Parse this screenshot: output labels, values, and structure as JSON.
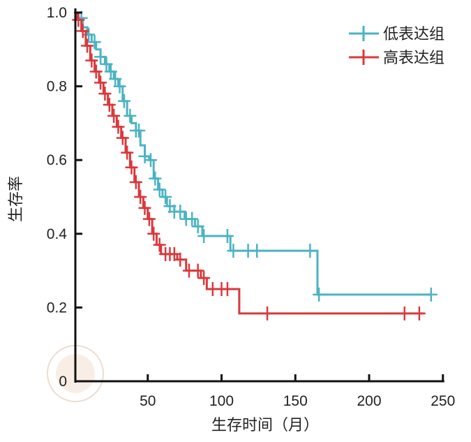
{
  "chart_data": {
    "type": "line",
    "subtype": "kaplan-meier",
    "title": "",
    "xlabel": "生存时间（月）",
    "ylabel": "生存率",
    "xlim": [
      0,
      250
    ],
    "ylim": [
      0,
      1.0
    ],
    "xticks": [
      50,
      100,
      150,
      200,
      250
    ],
    "yticks": [
      0,
      0.2,
      0.4,
      0.6,
      0.8,
      1.0
    ],
    "ytick_labels": [
      "0",
      "0.2",
      "0.4",
      "0.6",
      "0.8",
      "1.0"
    ],
    "xtick_labels": [
      "50",
      "100",
      "150",
      "200",
      "250"
    ],
    "grid": false,
    "legend_position": "top-right",
    "series": [
      {
        "name": "低表达组",
        "color": "#4bb3c3",
        "steps": [
          [
            0,
            1
          ],
          [
            3,
            0.985
          ],
          [
            6,
            0.96
          ],
          [
            9,
            0.94
          ],
          [
            12,
            0.92
          ],
          [
            15,
            0.9
          ],
          [
            18,
            0.88
          ],
          [
            21,
            0.86
          ],
          [
            24,
            0.84
          ],
          [
            27,
            0.82
          ],
          [
            30,
            0.8
          ],
          [
            33,
            0.76
          ],
          [
            36,
            0.72
          ],
          [
            39,
            0.7
          ],
          [
            42,
            0.68
          ],
          [
            45,
            0.64
          ],
          [
            48,
            0.61
          ],
          [
            51,
            0.6
          ],
          [
            54,
            0.55
          ],
          [
            57,
            0.52
          ],
          [
            60,
            0.5
          ],
          [
            63,
            0.475
          ],
          [
            68,
            0.46
          ],
          [
            75,
            0.44
          ],
          [
            82,
            0.42
          ],
          [
            87,
            0.394
          ],
          [
            106,
            0.354
          ],
          [
            165,
            0.235
          ]
        ],
        "end": 242,
        "censored": [
          5,
          10,
          14,
          18,
          22,
          25,
          28,
          31,
          34,
          38,
          42,
          44,
          48,
          52,
          55,
          58,
          62,
          65,
          68,
          72,
          76,
          80,
          84,
          88,
          104,
          108,
          118,
          124,
          160,
          166,
          242
        ]
      },
      {
        "name": "高表达组",
        "color": "#d9393c",
        "steps": [
          [
            0,
            1
          ],
          [
            2,
            0.98
          ],
          [
            5,
            0.95
          ],
          [
            8,
            0.91
          ],
          [
            11,
            0.87
          ],
          [
            14,
            0.84
          ],
          [
            17,
            0.81
          ],
          [
            20,
            0.78
          ],
          [
            23,
            0.75
          ],
          [
            26,
            0.72
          ],
          [
            29,
            0.69
          ],
          [
            32,
            0.66
          ],
          [
            35,
            0.62
          ],
          [
            38,
            0.58
          ],
          [
            41,
            0.54
          ],
          [
            44,
            0.5
          ],
          [
            47,
            0.47
          ],
          [
            50,
            0.44
          ],
          [
            53,
            0.4
          ],
          [
            56,
            0.37
          ],
          [
            59,
            0.345
          ],
          [
            70,
            0.33
          ],
          [
            76,
            0.3
          ],
          [
            86,
            0.28
          ],
          [
            90,
            0.25
          ],
          [
            112,
            0.184
          ]
        ],
        "end": 237,
        "censored": [
          3,
          6,
          9,
          12,
          15,
          18,
          21,
          24,
          27,
          30,
          33,
          36,
          39,
          42,
          45,
          48,
          51,
          54,
          58,
          62,
          65,
          68,
          72,
          78,
          84,
          88,
          94,
          100,
          104,
          131,
          224,
          234
        ]
      }
    ]
  }
}
